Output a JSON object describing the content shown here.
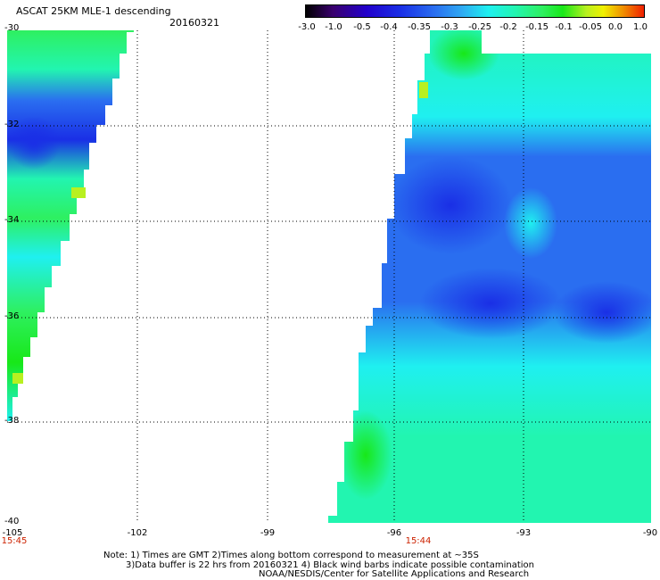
{
  "header": {
    "title": "ASCAT 25KM MLE-1 descending",
    "date": "20160321"
  },
  "colorbar": {
    "labels": [
      "-3.0",
      "-1.0",
      "-0.5",
      "-0.4",
      "-0.35",
      "-0.3",
      "-0.25",
      "-0.2",
      "-0.15",
      "-0.1",
      "-0.05",
      "0.0",
      "1.0"
    ]
  },
  "map": {
    "lat_ticks": [
      "-30",
      "-32",
      "-34",
      "-36",
      "-38",
      "-40"
    ],
    "lon_ticks": [
      "-105",
      "-102",
      "-99",
      "-96",
      "-93",
      "-90"
    ],
    "pass_times": [
      "15:45",
      "15:44"
    ],
    "lon_range": [
      -105,
      -90
    ],
    "lat_range": [
      -40,
      -30
    ],
    "colors": {
      "deep_blue": "#1a2fe6",
      "blue": "#2a6ef0",
      "sky": "#2fa8f2",
      "cyan": "#1ff0f0",
      "aqua_green": "#22f5b0",
      "green": "#2ef060",
      "bright_green": "#18e818",
      "yellow_green": "#b8f020"
    }
  },
  "notes": {
    "line1": "Note: 1) Times are GMT 2)Times along bottom correspond to measurement at ~35S",
    "line2": "3)Data buffer is 22 hrs from 20160321 4) Black wind barbs indicate possible contamination",
    "line3": "NOAA/NESDIS/Center for Satellite Applications and Research"
  }
}
